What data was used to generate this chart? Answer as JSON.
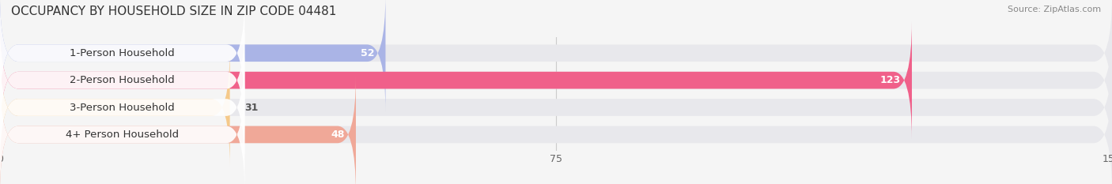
{
  "title": "OCCUPANCY BY HOUSEHOLD SIZE IN ZIP CODE 04481",
  "source_text": "Source: ZipAtlas.com",
  "categories": [
    "1-Person Household",
    "2-Person Household",
    "3-Person Household",
    "4+ Person Household"
  ],
  "values": [
    52,
    123,
    31,
    48
  ],
  "bar_colors": [
    "#aab4e6",
    "#f0608a",
    "#f5c98a",
    "#f0a898"
  ],
  "bar_bg_color": "#e8e8ec",
  "background_color": "#f5f5f5",
  "xlim": [
    0,
    150
  ],
  "xticks": [
    0,
    75,
    150
  ],
  "title_fontsize": 11,
  "label_fontsize": 9.5,
  "value_fontsize": 9,
  "bar_height": 0.62
}
